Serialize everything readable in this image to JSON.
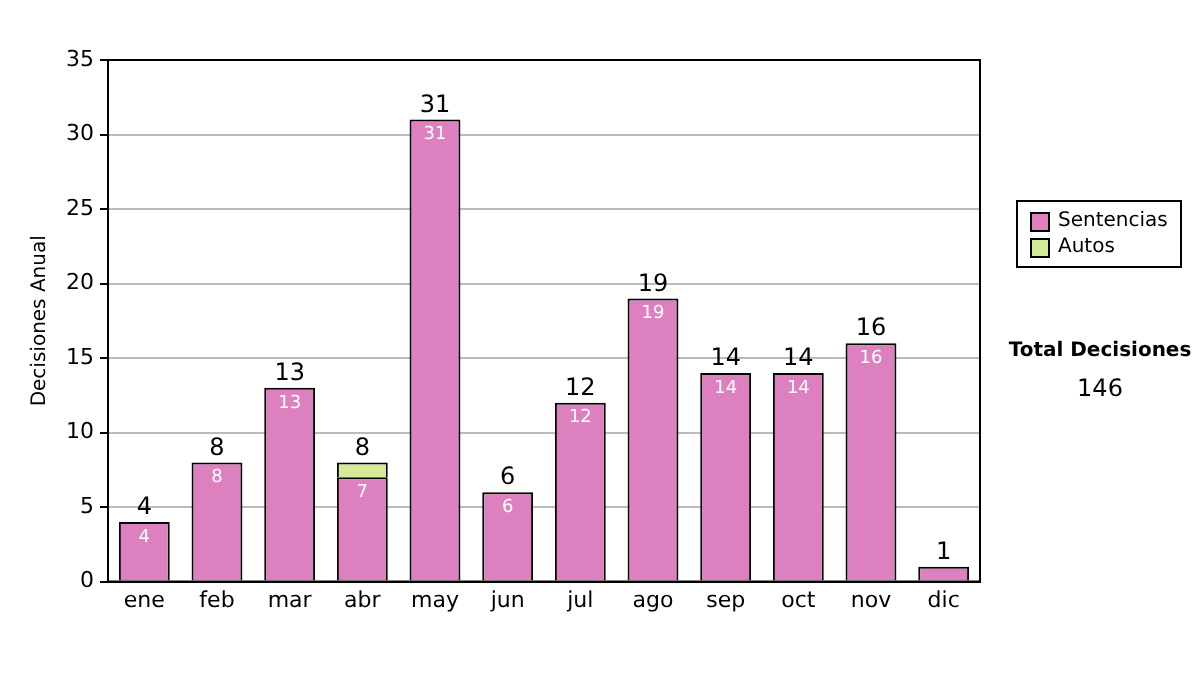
{
  "chart_data": {
    "type": "bar",
    "stacked": true,
    "ylabel": "Decisiones Anual",
    "categories": [
      "ene",
      "feb",
      "mar",
      "abr",
      "may",
      "jun",
      "jul",
      "ago",
      "sep",
      "oct",
      "nov",
      "dic"
    ],
    "series": [
      {
        "name": "Sentencias",
        "color": "#dd80c0",
        "values": [
          4,
          8,
          13,
          7,
          31,
          6,
          12,
          19,
          14,
          14,
          16,
          1
        ],
        "value_labels": [
          "4",
          "8",
          "13",
          "7",
          "31",
          "6",
          "12",
          "19",
          "14",
          "14",
          "16",
          null
        ]
      },
      {
        "name": "Autos",
        "color": "#d4ea98",
        "values": [
          0,
          0,
          0,
          1,
          0,
          0,
          0,
          0,
          0,
          0,
          0,
          0
        ]
      }
    ],
    "totals": [
      "4",
      "8",
      "13",
      "8",
      "31",
      "6",
      "12",
      "19",
      "14",
      "14",
      "16",
      "1"
    ],
    "ylim": [
      0,
      35
    ],
    "yticks": [
      0,
      5,
      10,
      15,
      20,
      25,
      30,
      35
    ],
    "grid": "y",
    "legend": "right",
    "annotations": [
      "Total Decisiones",
      "146"
    ]
  }
}
